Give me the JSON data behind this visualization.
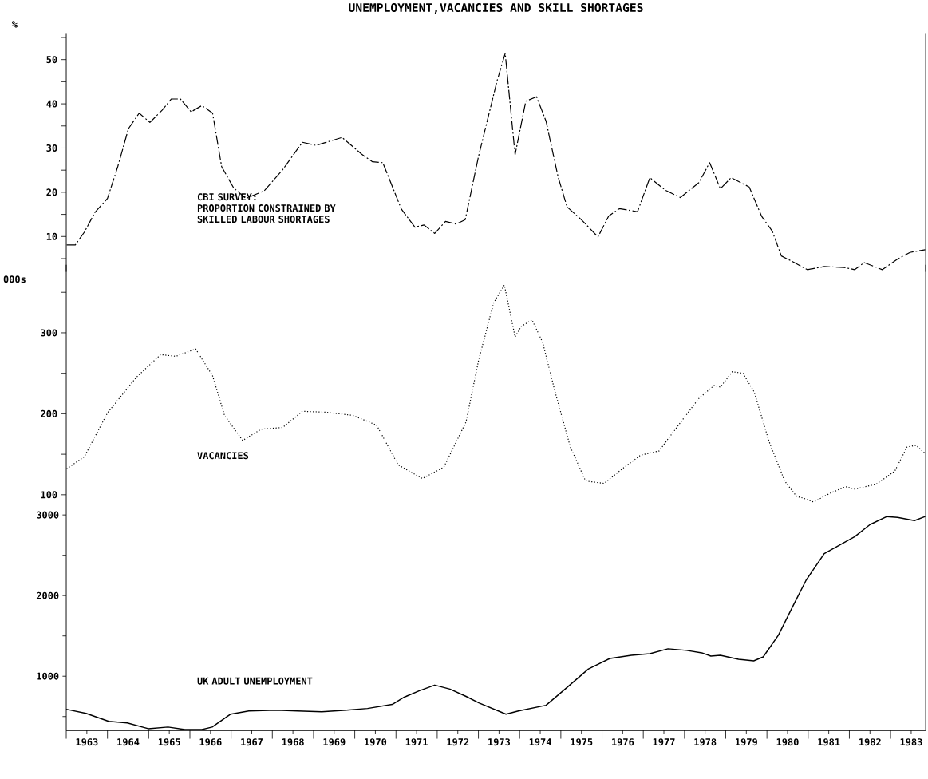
{
  "chart_data": [
    {
      "type": "line",
      "title": "UNEMPLOYMENT,VACANCIES AND SKILL SHORTAGES",
      "ylabel": "%",
      "line_style": "dashed",
      "tick_labels": "y",
      "xlim": [
        1963,
        1983.85
      ],
      "ylim": [
        2,
        56
      ],
      "yticks": [
        {
          "value": 5,
          "label": null
        },
        10,
        {
          "value": 15,
          "label": null
        },
        20,
        {
          "value": 25,
          "label": null
        },
        30,
        {
          "value": 35,
          "label": null
        },
        40,
        {
          "value": 45,
          "label": null
        },
        50,
        {
          "value": 55,
          "label": null
        }
      ],
      "annotations": [
        "PROPORTION CONSTRAINED BY SKILLED LABOUR SHORTAGES"
      ],
      "x": [
        1963.01,
        1963.22,
        1963.44,
        1963.7,
        1964.0,
        1964.25,
        1964.51,
        1964.77,
        1965.03,
        1965.33,
        1965.55,
        1965.77,
        1966.03,
        1966.29,
        1966.55,
        1966.77,
        1967.06,
        1967.36,
        1967.8,
        1968.25,
        1968.73,
        1969.06,
        1969.69,
        1970.17,
        1970.43,
        1970.68,
        1971.13,
        1971.46,
        1971.68,
        1971.94,
        1972.2,
        1972.46,
        1972.68,
        1973.0,
        1973.45,
        1973.65,
        1973.89,
        1974.15,
        1974.41,
        1974.64,
        1974.93,
        1975.15,
        1975.52,
        1975.9,
        1976.16,
        1976.42,
        1976.86,
        1977.16,
        1977.53,
        1977.9,
        1978.35,
        1978.61,
        1978.87,
        1979.13,
        1979.57,
        1979.87,
        1980.13,
        1980.35,
        1980.65,
        1980.98,
        1981.39,
        1981.87,
        1982.13,
        1982.36,
        1982.8,
        1983.17,
        1983.47,
        1983.84
      ],
      "series": [
        {
          "name": "CBI SURVEY:",
          "color": "#000000",
          "values": [
            8.1,
            8.1,
            11.0,
            15.5,
            18.6,
            25.8,
            34.4,
            37.9,
            35.8,
            38.6,
            41.1,
            41.1,
            38.2,
            39.6,
            37.9,
            25.8,
            21.0,
            18.6,
            20.3,
            25.1,
            31.3,
            30.6,
            32.4,
            28.6,
            26.9,
            26.7,
            16.2,
            12.1,
            12.6,
            10.7,
            13.4,
            12.8,
            13.8,
            28,
            45.1,
            51.4,
            28.5,
            40.6,
            41.6,
            36.1,
            23.6,
            16.7,
            13.6,
            9.9,
            14.6,
            16.3,
            15.6,
            23.3,
            20.5,
            18.8,
            22.2,
            26.7,
            20.8,
            23.3,
            21.2,
            14.6,
            11.2,
            5.6,
            4.2,
            2.5,
            3.2,
            3.0,
            2.5,
            4.1,
            2.5,
            4.9,
            6.4,
            7.0
          ]
        }
      ]
    },
    {
      "type": "line",
      "ylabel": "000s",
      "line_style": "dotted",
      "tick_labels": "y",
      "xlim": [
        1963,
        1983.85
      ],
      "ylim": [
        88,
        384
      ],
      "yticks": [
        100,
        {
          "value": 150,
          "label": null
        },
        200,
        {
          "value": 250,
          "label": null
        },
        300,
        {
          "value": 350,
          "label": null
        }
      ],
      "x": [
        1963.01,
        1963.44,
        1964.0,
        1964.7,
        1965.29,
        1965.66,
        1966.14,
        1966.55,
        1966.84,
        1967.28,
        1967.73,
        1968.25,
        1968.73,
        1969.28,
        1969.95,
        1970.53,
        1971.05,
        1971.64,
        1972.16,
        1972.7,
        1973.0,
        1973.37,
        1973.63,
        1973.89,
        1974.04,
        1974.3,
        1974.56,
        1974.86,
        1975.23,
        1975.6,
        1976.05,
        1976.49,
        1976.94,
        1977.38,
        1977.9,
        1978.35,
        1978.72,
        1978.87,
        1979.16,
        1979.42,
        1979.69,
        1980.05,
        1980.43,
        1980.72,
        1980.87,
        1981.13,
        1981.54,
        1981.91,
        1982.13,
        1982.65,
        1983.1,
        1983.4,
        1983.62,
        1983.84
      ],
      "series": [
        {
          "name": "VACANCIES",
          "color": "#000000",
          "values": [
            132,
            147,
            201,
            245,
            273,
            271,
            280,
            247,
            198,
            167,
            181,
            183,
            203,
            202,
            198,
            186,
            137,
            120,
            134,
            190,
            265,
            337,
            359,
            295,
            308,
            316,
            288,
            227,
            159,
            117,
            114,
            132,
            149,
            154,
            189,
            219,
            235,
            233,
            252,
            250,
            227,
            166,
            117,
            98,
            96,
            91,
            102,
            110,
            107,
            113,
            129,
            159,
            161,
            151
          ]
        }
      ]
    },
    {
      "type": "line",
      "line_style": "solid",
      "xlim": [
        1963,
        1983.85
      ],
      "ylim": [
        330,
        3130
      ],
      "yticks": [
        {
          "value": 500,
          "label": null
        },
        1000,
        {
          "value": 1500,
          "label": null
        },
        2000,
        {
          "value": 2500,
          "label": null
        },
        3000
      ],
      "xticks": [
        {
          "value": 1963,
          "label": null
        },
        {
          "value": 1963.5,
          "label": "1963"
        },
        {
          "value": 1964,
          "label": null
        },
        {
          "value": 1964.5,
          "label": "1964"
        },
        {
          "value": 1965,
          "label": null
        },
        {
          "value": 1965.5,
          "label": "1965"
        },
        {
          "value": 1966,
          "label": null
        },
        {
          "value": 1966.5,
          "label": "1966"
        },
        {
          "value": 1967,
          "label": null
        },
        {
          "value": 1967.5,
          "label": "1967"
        },
        {
          "value": 1968,
          "label": null
        },
        {
          "value": 1968.5,
          "label": "1968"
        },
        {
          "value": 1969,
          "label": null
        },
        {
          "value": 1969.5,
          "label": "1969"
        },
        {
          "value": 1970,
          "label": null
        },
        {
          "value": 1970.5,
          "label": "1970"
        },
        {
          "value": 1971,
          "label": null
        },
        {
          "value": 1971.5,
          "label": "1971"
        },
        {
          "value": 1972,
          "label": null
        },
        {
          "value": 1972.5,
          "label": "1972"
        },
        {
          "value": 1973,
          "label": null
        },
        {
          "value": 1973.5,
          "label": "1973"
        },
        {
          "value": 1974,
          "label": null
        },
        {
          "value": 1974.5,
          "label": "1974"
        },
        {
          "value": 1975,
          "label": null
        },
        {
          "value": 1975.5,
          "label": "1975"
        },
        {
          "value": 1976,
          "label": null
        },
        {
          "value": 1976.5,
          "label": "1976"
        },
        {
          "value": 1977,
          "label": null
        },
        {
          "value": 1977.5,
          "label": "1977"
        },
        {
          "value": 1978,
          "label": null
        },
        {
          "value": 1978.5,
          "label": "1978"
        },
        {
          "value": 1979,
          "label": null
        },
        {
          "value": 1979.5,
          "label": "1979"
        },
        {
          "value": 1980,
          "label": null
        },
        {
          "value": 1980.5,
          "label": "1980"
        },
        {
          "value": 1981,
          "label": null
        },
        {
          "value": 1981.5,
          "label": "1981"
        },
        {
          "value": 1982,
          "label": null
        },
        {
          "value": 1982.5,
          "label": "1982"
        },
        {
          "value": 1983,
          "label": null
        },
        {
          "value": 1983.5,
          "label": "1983"
        }
      ],
      "x": [
        1963.0,
        1963.48,
        1964.03,
        1964.48,
        1964.99,
        1965.47,
        1965.88,
        1966.29,
        1966.54,
        1966.99,
        1967.43,
        1968.1,
        1968.61,
        1969.2,
        1969.8,
        1970.31,
        1970.91,
        1971.2,
        1971.57,
        1971.94,
        1972.31,
        1972.7,
        1973.01,
        1973.67,
        1973.97,
        1974.64,
        1975.08,
        1975.67,
        1976.19,
        1976.71,
        1977.16,
        1977.6,
        1978.05,
        1978.42,
        1978.64,
        1978.87,
        1979.31,
        1979.68,
        1979.91,
        1980.28,
        1980.65,
        1980.95,
        1981.39,
        1982.13,
        1982.5,
        1982.91,
        1983.17,
        1983.58,
        1983.84
      ],
      "series": [
        {
          "name": "UK ADULT UNEMPLOYMENT",
          "color": "#000000",
          "values": [
            590,
            540,
            440,
            420,
            350,
            370,
            340,
            340,
            370,
            530,
            570,
            580,
            570,
            560,
            580,
            600,
            650,
            740,
            820,
            890,
            840,
            750,
            670,
            530,
            570,
            640,
            830,
            1090,
            1220,
            1260,
            1280,
            1340,
            1320,
            1290,
            1250,
            1260,
            1210,
            1190,
            1240,
            1510,
            1890,
            2190,
            2520,
            2730,
            2880,
            2980,
            2970,
            2930,
            2980
          ]
        }
      ]
    }
  ]
}
